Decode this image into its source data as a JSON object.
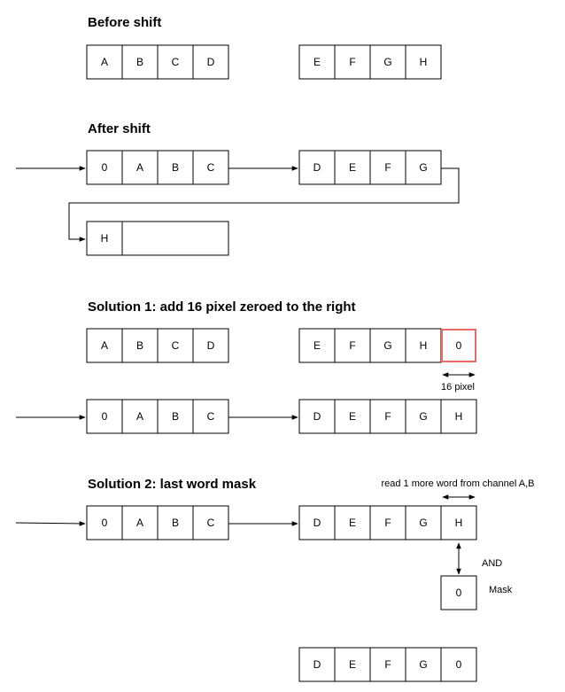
{
  "titles": {
    "before": "Before shift",
    "after": "After shift",
    "solution1": "Solution 1: add 16 pixel zeroed to the right",
    "solution2": "Solution 2: last word mask"
  },
  "labels": {
    "pixel16": "16 pixel",
    "read_more": "read 1 more word from channel A,B",
    "and": "AND",
    "mask": "Mask"
  },
  "rows": {
    "before_left": [
      "A",
      "B",
      "C",
      "D"
    ],
    "before_right": [
      "E",
      "F",
      "G",
      "H"
    ],
    "after_left": [
      "0",
      "A",
      "B",
      "C"
    ],
    "after_right": [
      "D",
      "E",
      "F",
      "G"
    ],
    "after_wrap": [
      "H",
      ""
    ],
    "sol1_left": [
      "A",
      "B",
      "C",
      "D"
    ],
    "sol1_right": [
      "E",
      "F",
      "G",
      "H",
      "0"
    ],
    "sol1_shift_left": [
      "0",
      "A",
      "B",
      "C"
    ],
    "sol1_shift_right": [
      "D",
      "E",
      "F",
      "G",
      "H"
    ],
    "sol2_left": [
      "0",
      "A",
      "B",
      "C"
    ],
    "sol2_right": [
      "D",
      "E",
      "F",
      "G",
      "H"
    ],
    "sol2_mask": [
      "0"
    ],
    "sol2_result": [
      "D",
      "E",
      "F",
      "G",
      "0"
    ]
  }
}
